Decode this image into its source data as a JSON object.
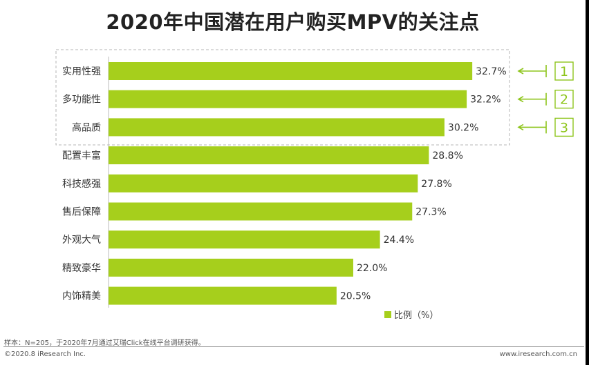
{
  "title": "2020年中国潜在用户购买MPV的关注点",
  "chart_data": {
    "type": "bar",
    "orientation": "horizontal",
    "categories": [
      "实用性强",
      "多功能性",
      "高品质",
      "配置丰富",
      "科技感强",
      "售后保障",
      "外观大气",
      "精致豪华",
      "内饰精美"
    ],
    "series": [
      {
        "name": "比例（%）",
        "values": [
          32.7,
          32.2,
          30.2,
          28.8,
          27.8,
          27.3,
          24.4,
          22.0,
          20.5
        ]
      }
    ],
    "value_labels": [
      "32.7%",
      "32.2%",
      "30.2%",
      "28.8%",
      "27.8%",
      "27.3%",
      "24.4%",
      "22.0%",
      "20.5%"
    ],
    "xlim": [
      0,
      38
    ],
    "bar_color": "#a6cf1c",
    "rank_markers": [
      "1",
      "2",
      "3"
    ],
    "highlight_color": "#8ec51c",
    "grid": false,
    "legend_position": "bottom-right"
  },
  "legend": {
    "label": "比例（%）",
    "color": "#a6cf1c"
  },
  "source_note": "样本：N=205，于2020年7月通过艾瑞Click在线平台调研获得。",
  "copyright": "©2020.8 iResearch Inc.",
  "website": "www.iresearch.com.cn"
}
